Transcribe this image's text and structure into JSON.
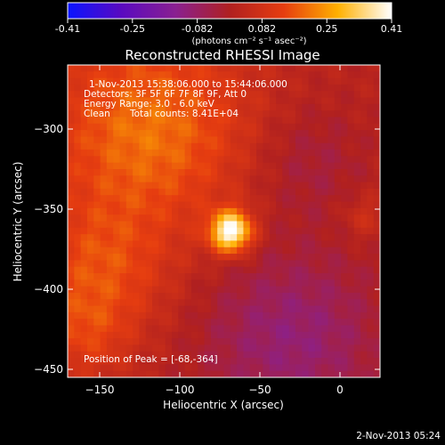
{
  "chart_data": {
    "type": "heatmap",
    "title": "Reconstructed RHESSI Image",
    "xlabel": "Heliocentric X (arcsec)",
    "ylabel": "Heliocentric Y (arcsec)",
    "xlim": [
      -170,
      25
    ],
    "ylim": [
      -455,
      -260
    ],
    "x_ticks": [
      -150,
      -100,
      -50,
      0
    ],
    "y_ticks": [
      -300,
      -350,
      -400,
      -450
    ],
    "colorbar": {
      "min": -0.41,
      "max": 0.41,
      "ticks": [
        "-0.41",
        "-0.25",
        "-0.082",
        "0.082",
        "0.25",
        "0.41"
      ],
      "units_label": "(photons cm⁻² s⁻¹ asec⁻²)",
      "colors": [
        "#0a14ff",
        "#5a0ac0",
        "#8a2090",
        "#b02020",
        "#e63d10",
        "#ffb000",
        "#ffffff"
      ]
    },
    "annotations": {
      "time_range": "1-Nov-2013 15:38:06.000 to 15:44:06.000",
      "detectors": "Detectors: 3F 5F 6F 7F 8F 9F, Att 0",
      "energy": "Energy Range: 3.0 - 6.0 keV",
      "method": "Clean",
      "counts": "Total counts: 8.41E+04",
      "peak": "Position of Peak = [-68,-364]"
    },
    "peak_position": [
      -68,
      -364
    ],
    "components": [
      {
        "type": "background",
        "value": 0.02
      },
      {
        "type": "gaussian",
        "x": -68,
        "y": -364,
        "sigma": 9,
        "amplitude": 0.4
      },
      {
        "type": "gaussian",
        "x": -120,
        "y": -300,
        "sigma": 45,
        "amplitude": 0.18
      },
      {
        "type": "gaussian",
        "x": -150,
        "y": -390,
        "sigma": 30,
        "amplitude": 0.12
      },
      {
        "type": "gaussian",
        "x": -160,
        "y": -430,
        "sigma": 20,
        "amplitude": 0.08
      },
      {
        "type": "gaussian",
        "x": 15,
        "y": -355,
        "sigma": 10,
        "amplitude": 0.06
      },
      {
        "type": "gaussian",
        "x": -30,
        "y": -430,
        "sigma": 40,
        "amplitude": -0.12
      },
      {
        "type": "gaussian",
        "x": -20,
        "y": -320,
        "sigma": 25,
        "amplitude": -0.06
      }
    ]
  },
  "timestamp": "2-Nov-2013 05:24"
}
